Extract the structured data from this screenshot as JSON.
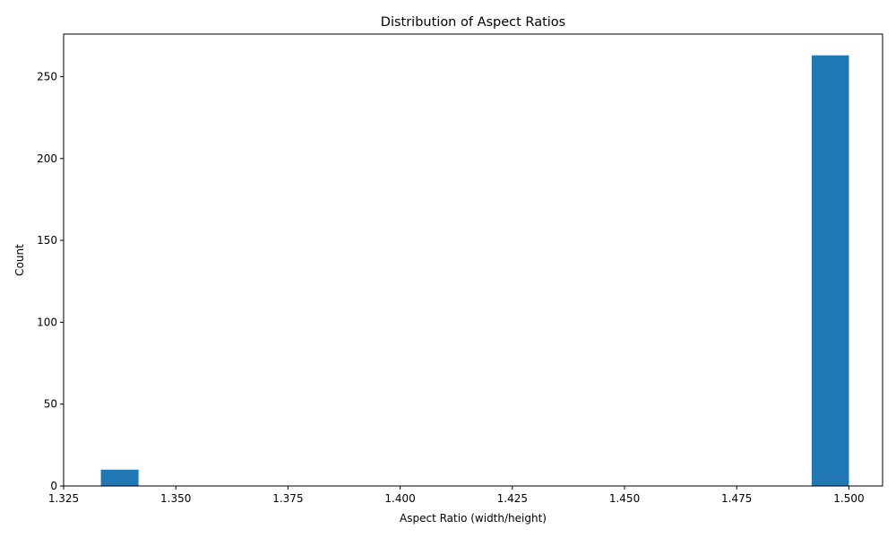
{
  "chart_data": {
    "type": "bar",
    "title": "Distribution of Aspect Ratios",
    "xlabel": "Aspect Ratio (width/height)",
    "ylabel": "Count",
    "xlim": [
      1.325,
      1.5075
    ],
    "ylim": [
      0,
      276
    ],
    "x_ticks": [
      1.325,
      1.35,
      1.375,
      1.4,
      1.425,
      1.45,
      1.475,
      1.5
    ],
    "x_tick_labels": [
      "1.325",
      "1.350",
      "1.375",
      "1.400",
      "1.425",
      "1.450",
      "1.475",
      "1.500"
    ],
    "y_ticks": [
      0,
      50,
      100,
      150,
      200,
      250
    ],
    "y_tick_labels": [
      "0",
      "50",
      "100",
      "150",
      "200",
      "250"
    ],
    "bins": [
      {
        "x0": 1.3333,
        "x1": 1.3417,
        "count": 10
      },
      {
        "x0": 1.4917,
        "x1": 1.5,
        "count": 263
      }
    ],
    "bar_color": "#1f77b4",
    "grid": false,
    "legend": "none"
  }
}
